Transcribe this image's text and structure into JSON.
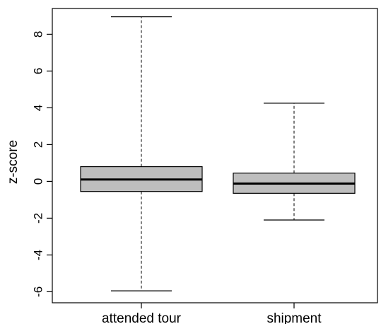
{
  "chart_data": {
    "type": "boxplot",
    "title": "",
    "xlabel": "",
    "ylabel": "z-score",
    "ylim": [
      -6.6,
      9.4
    ],
    "yticks": [
      -6,
      -4,
      -2,
      0,
      2,
      4,
      6,
      8
    ],
    "grid": false,
    "legend": "none",
    "box_fill": "#bebebe",
    "categories": [
      "attended tour",
      "shipment"
    ],
    "boxes": [
      {
        "category": "attended tour",
        "whisker_low": -5.95,
        "q1": -0.55,
        "median": 0.1,
        "q3": 0.8,
        "whisker_high": 8.95
      },
      {
        "category": "shipment",
        "whisker_low": -2.1,
        "q1": -0.65,
        "median": -0.12,
        "q3": 0.45,
        "whisker_high": 4.25
      }
    ]
  }
}
